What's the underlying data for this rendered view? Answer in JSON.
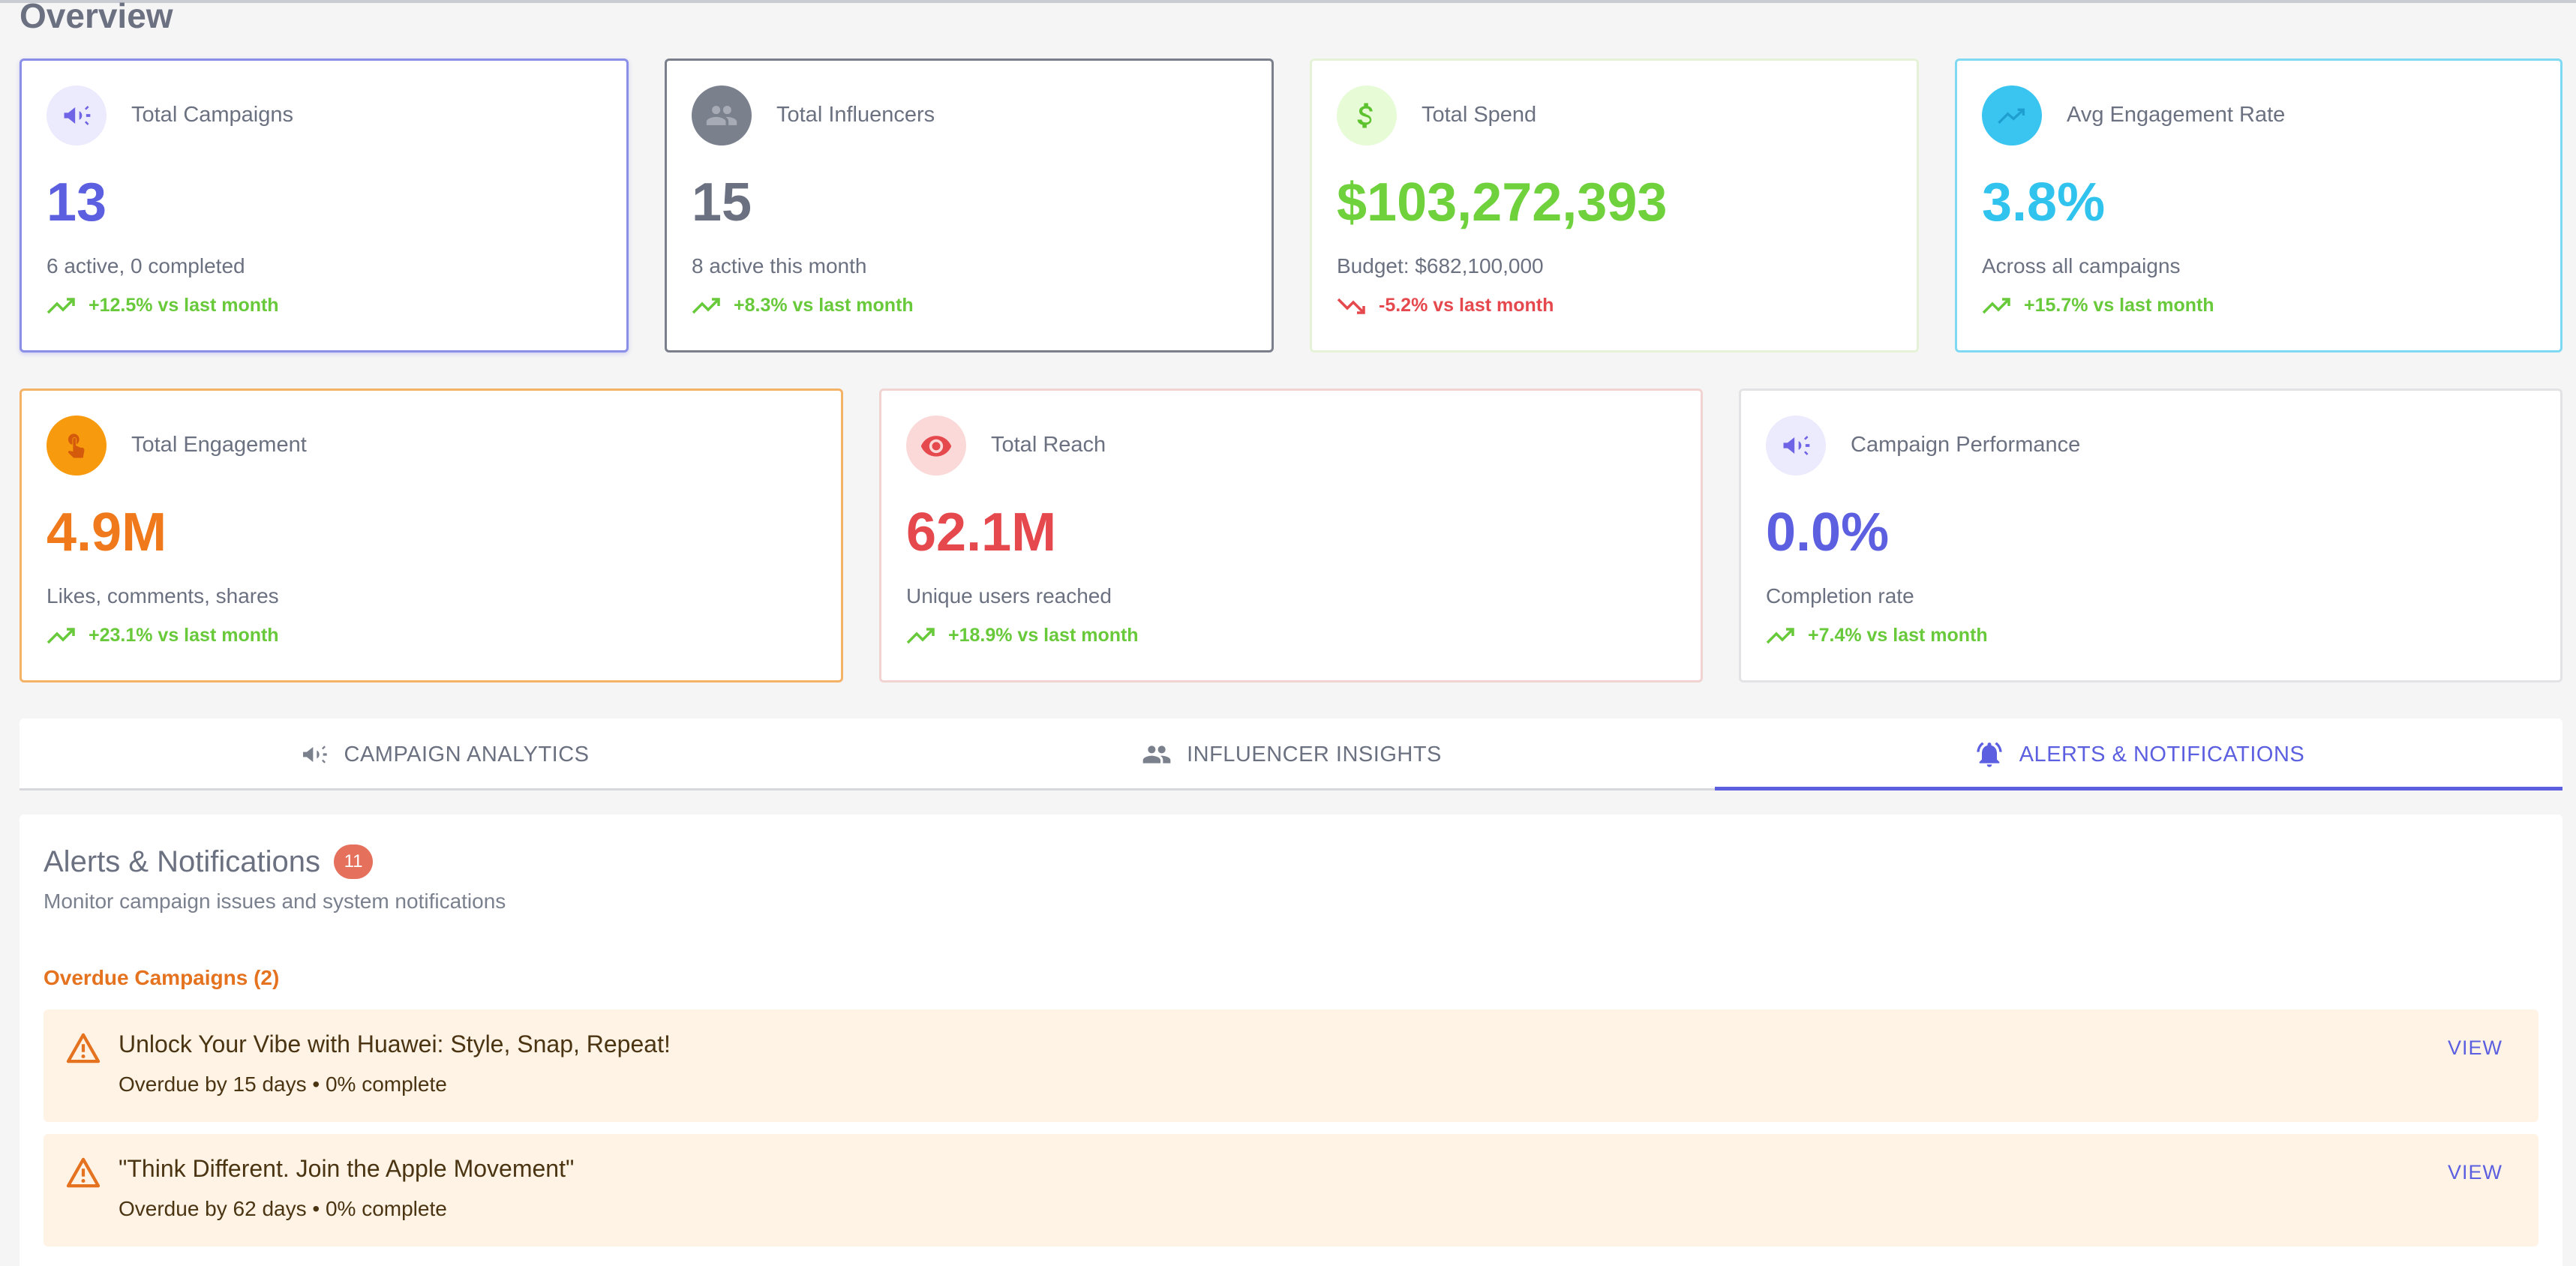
{
  "page": {
    "title": "Overview"
  },
  "colors": {
    "primary": "#5b5fe0",
    "positive": "#68c93a",
    "negative": "#e5484d",
    "orange": "#f07a1b",
    "red": "#e5484d",
    "sky": "#2fc3ee",
    "slate": "#6b7180"
  },
  "stats_row1": [
    {
      "label": "Total Campaigns",
      "value": "13",
      "sub": "6 active, 0 completed",
      "trend": "+12.5% vs last month",
      "trend_dir": "up",
      "icon": "megaphone-icon"
    },
    {
      "label": "Total Influencers",
      "value": "15",
      "sub": "8 active this month",
      "trend": "+8.3% vs last month",
      "trend_dir": "up",
      "icon": "people-icon"
    },
    {
      "label": "Total Spend",
      "value": "$103,272,393",
      "sub": "Budget: $682,100,000",
      "trend": "-5.2% vs last month",
      "trend_dir": "down",
      "icon": "dollar-icon"
    },
    {
      "label": "Avg Engagement Rate",
      "value": "3.8%",
      "sub": "Across all campaigns",
      "trend": "+15.7% vs last month",
      "trend_dir": "up",
      "icon": "trending-up-icon"
    }
  ],
  "stats_row2": [
    {
      "label": "Total Engagement",
      "value": "4.9M",
      "sub": "Likes, comments, shares",
      "trend": "+23.1% vs last month",
      "trend_dir": "up",
      "icon": "touch-icon"
    },
    {
      "label": "Total Reach",
      "value": "62.1M",
      "sub": "Unique users reached",
      "trend": "+18.9% vs last month",
      "trend_dir": "up",
      "icon": "eye-icon"
    },
    {
      "label": "Campaign Performance",
      "value": "0.0%",
      "sub": "Completion rate",
      "trend": "+7.4% vs last month",
      "trend_dir": "up",
      "icon": "megaphone-icon"
    }
  ],
  "tabs": [
    {
      "label": "CAMPAIGN ANALYTICS",
      "icon": "megaphone-icon",
      "active": false
    },
    {
      "label": "INFLUENCER INSIGHTS",
      "icon": "people-icon",
      "active": false
    },
    {
      "label": "ALERTS & NOTIFICATIONS",
      "icon": "bell-icon",
      "active": true
    }
  ],
  "alerts_panel": {
    "title": "Alerts & Notifications",
    "badge": "11",
    "subtitle": "Monitor campaign issues and system notifications",
    "overdue_heading": "Overdue Campaigns (2)",
    "items": [
      {
        "title": "Unlock Your Vibe with Huawei: Style, Snap, Repeat!",
        "sub": "Overdue by 15 days • 0% complete",
        "action": "VIEW"
      },
      {
        "title": "\"Think Different. Join the Apple Movement\"",
        "sub": "Overdue by 62 days • 0% complete",
        "action": "VIEW"
      }
    ]
  }
}
